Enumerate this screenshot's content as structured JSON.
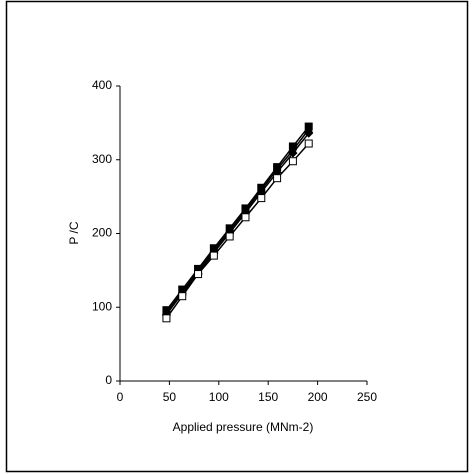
{
  "chart_data": {
    "type": "line",
    "x_label": "Applied pressure (MNm-2)",
    "y_label": "P /C",
    "x": [
      47,
      63,
      79,
      95,
      111,
      127,
      143,
      159,
      175,
      191
    ],
    "series": [
      {
        "color": "#000000",
        "marker": "square",
        "values": [
          96,
          124,
          152,
          180,
          207,
          234,
          262,
          290,
          318,
          345
        ]
      },
      {
        "color": "#000000",
        "marker": "triangle",
        "values": [
          93,
          121,
          149,
          177,
          204,
          231,
          259,
          287,
          313,
          341
        ]
      },
      {
        "color": "#000000",
        "marker": "diamond",
        "values": [
          90,
          119,
          146,
          174,
          201,
          228,
          256,
          283,
          309,
          336
        ]
      },
      {
        "color": "#000000",
        "marker": "open-square",
        "values": [
          85,
          115,
          145,
          170,
          196,
          222,
          248,
          275,
          298,
          322
        ]
      }
    ],
    "xlim": [
      0,
      250
    ],
    "xticks": [
      0,
      50,
      100,
      150,
      200,
      250
    ],
    "ylim": [
      0,
      400
    ],
    "yticks": [
      0,
      100,
      200,
      300,
      400
    ],
    "grid": false
  }
}
